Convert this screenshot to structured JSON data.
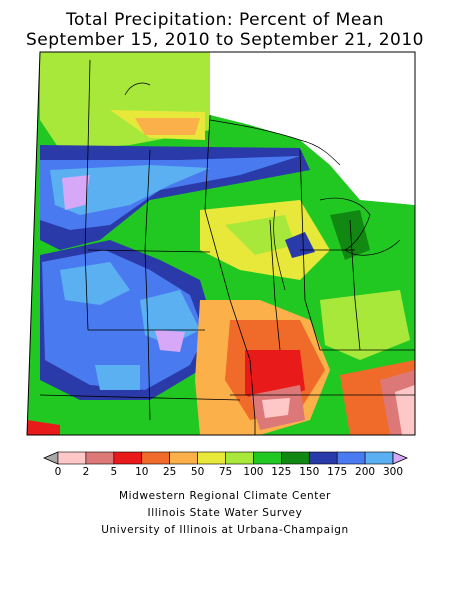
{
  "title_line1": "Total Precipitation: Percent of Mean",
  "title_line2": "September 15, 2010 to September 21, 2010",
  "legend": {
    "tick_labels": [
      "0",
      "2",
      "5",
      "10",
      "25",
      "50",
      "75",
      "100",
      "125",
      "150",
      "175",
      "200",
      "300"
    ],
    "colors": [
      "#a8a8a8",
      "#ffc8c8",
      "#dc7878",
      "#e81a1a",
      "#f06a2a",
      "#fbb04a",
      "#e8e83a",
      "#a8e83a",
      "#22c822",
      "#118811",
      "#2a3aa8",
      "#4a7af0",
      "#5ab0f0",
      "#d8a8f8"
    ]
  },
  "credits": {
    "line1": "Midwestern Regional Climate Center",
    "line2": "Illinois State Water Survey",
    "line3": "University of Illinois at Urbana-Champaign"
  }
}
